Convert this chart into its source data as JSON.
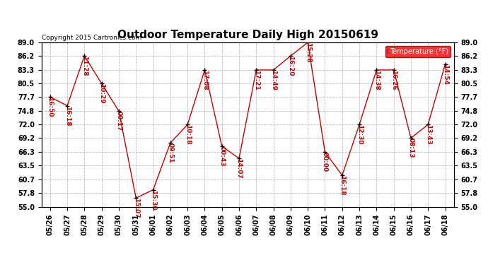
{
  "title": "Outdoor Temperature Daily High 20150619",
  "copyright": "Copyright 2015 Cartronics.com",
  "legend_label": "Temperature (°F)",
  "background_color": "#ffffff",
  "plot_bg_color": "#ffffff",
  "grid_color": "#bbbbbb",
  "line_color": "#cc0000",
  "marker_color": "#000000",
  "label_color": "#cc0000",
  "ylim": [
    55.0,
    89.0
  ],
  "yticks": [
    55.0,
    57.8,
    60.7,
    63.5,
    66.3,
    69.2,
    72.0,
    74.8,
    77.7,
    80.5,
    83.3,
    86.2,
    89.0
  ],
  "dates": [
    "05/26",
    "05/27",
    "05/28",
    "05/29",
    "05/30",
    "05/31",
    "06/01",
    "06/02",
    "06/03",
    "06/04",
    "06/05",
    "06/06",
    "06/07",
    "06/08",
    "06/09",
    "06/10",
    "06/11",
    "06/12",
    "06/13",
    "06/14",
    "06/15",
    "06/16",
    "06/17",
    "06/18"
  ],
  "values": [
    77.7,
    75.9,
    86.2,
    80.5,
    74.8,
    56.8,
    58.5,
    68.2,
    72.0,
    83.3,
    67.5,
    65.0,
    83.3,
    83.3,
    86.2,
    89.0,
    66.3,
    61.5,
    72.0,
    83.3,
    83.3,
    69.2,
    72.0,
    84.5
  ],
  "times": [
    "16:50",
    "16:18",
    "11:28",
    "10:29",
    "00:17",
    "15:07",
    "15:30",
    "09:51",
    "10:18",
    "17:08",
    "00:43",
    "14:07",
    "17:21",
    "14:49",
    "16:20",
    "15:28",
    "00:00",
    "16:18",
    "12:30",
    "14:38",
    "16:26",
    "08:13",
    "13:43",
    "14:54"
  ],
  "title_fontsize": 11,
  "tick_fontsize": 7,
  "label_fontsize": 6.5
}
